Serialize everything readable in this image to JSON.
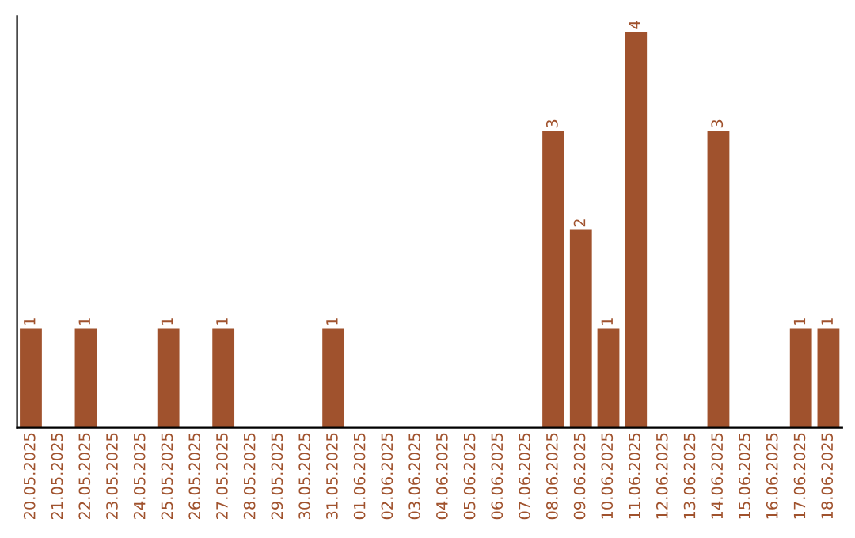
{
  "chart_data": {
    "type": "bar",
    "categories": [
      "20.05.2025",
      "21.05.2025",
      "22.05.2025",
      "23.05.2025",
      "24.05.2025",
      "25.05.2025",
      "26.05.2025",
      "27.05.2025",
      "28.05.2025",
      "29.05.2025",
      "30.05.2025",
      "31.05.2025",
      "01.06.2025",
      "02.06.2025",
      "03.06.2025",
      "04.06.2025",
      "05.06.2025",
      "06.06.2025",
      "07.06.2025",
      "08.06.2025",
      "09.06.2025",
      "10.06.2025",
      "11.06.2025",
      "12.06.2025",
      "13.06.2025",
      "14.06.2025",
      "15.06.2025",
      "16.06.2025",
      "17.06.2025",
      "18.06.2025"
    ],
    "values": [
      1,
      0,
      1,
      0,
      0,
      1,
      0,
      1,
      0,
      0,
      0,
      1,
      0,
      0,
      0,
      0,
      0,
      0,
      0,
      3,
      2,
      1,
      4,
      0,
      0,
      3,
      0,
      0,
      1,
      1
    ],
    "value_labels": [
      "1",
      null,
      "1",
      null,
      null,
      "1",
      null,
      "1",
      null,
      null,
      null,
      "1",
      null,
      null,
      null,
      null,
      null,
      null,
      null,
      "3",
      "2",
      "1",
      "4",
      null,
      null,
      "3",
      null,
      null,
      "1",
      "1"
    ],
    "color": "#a0522d",
    "ylim": [
      0,
      4.16
    ],
    "tick_labels": "x",
    "grid": false,
    "legend": false
  }
}
